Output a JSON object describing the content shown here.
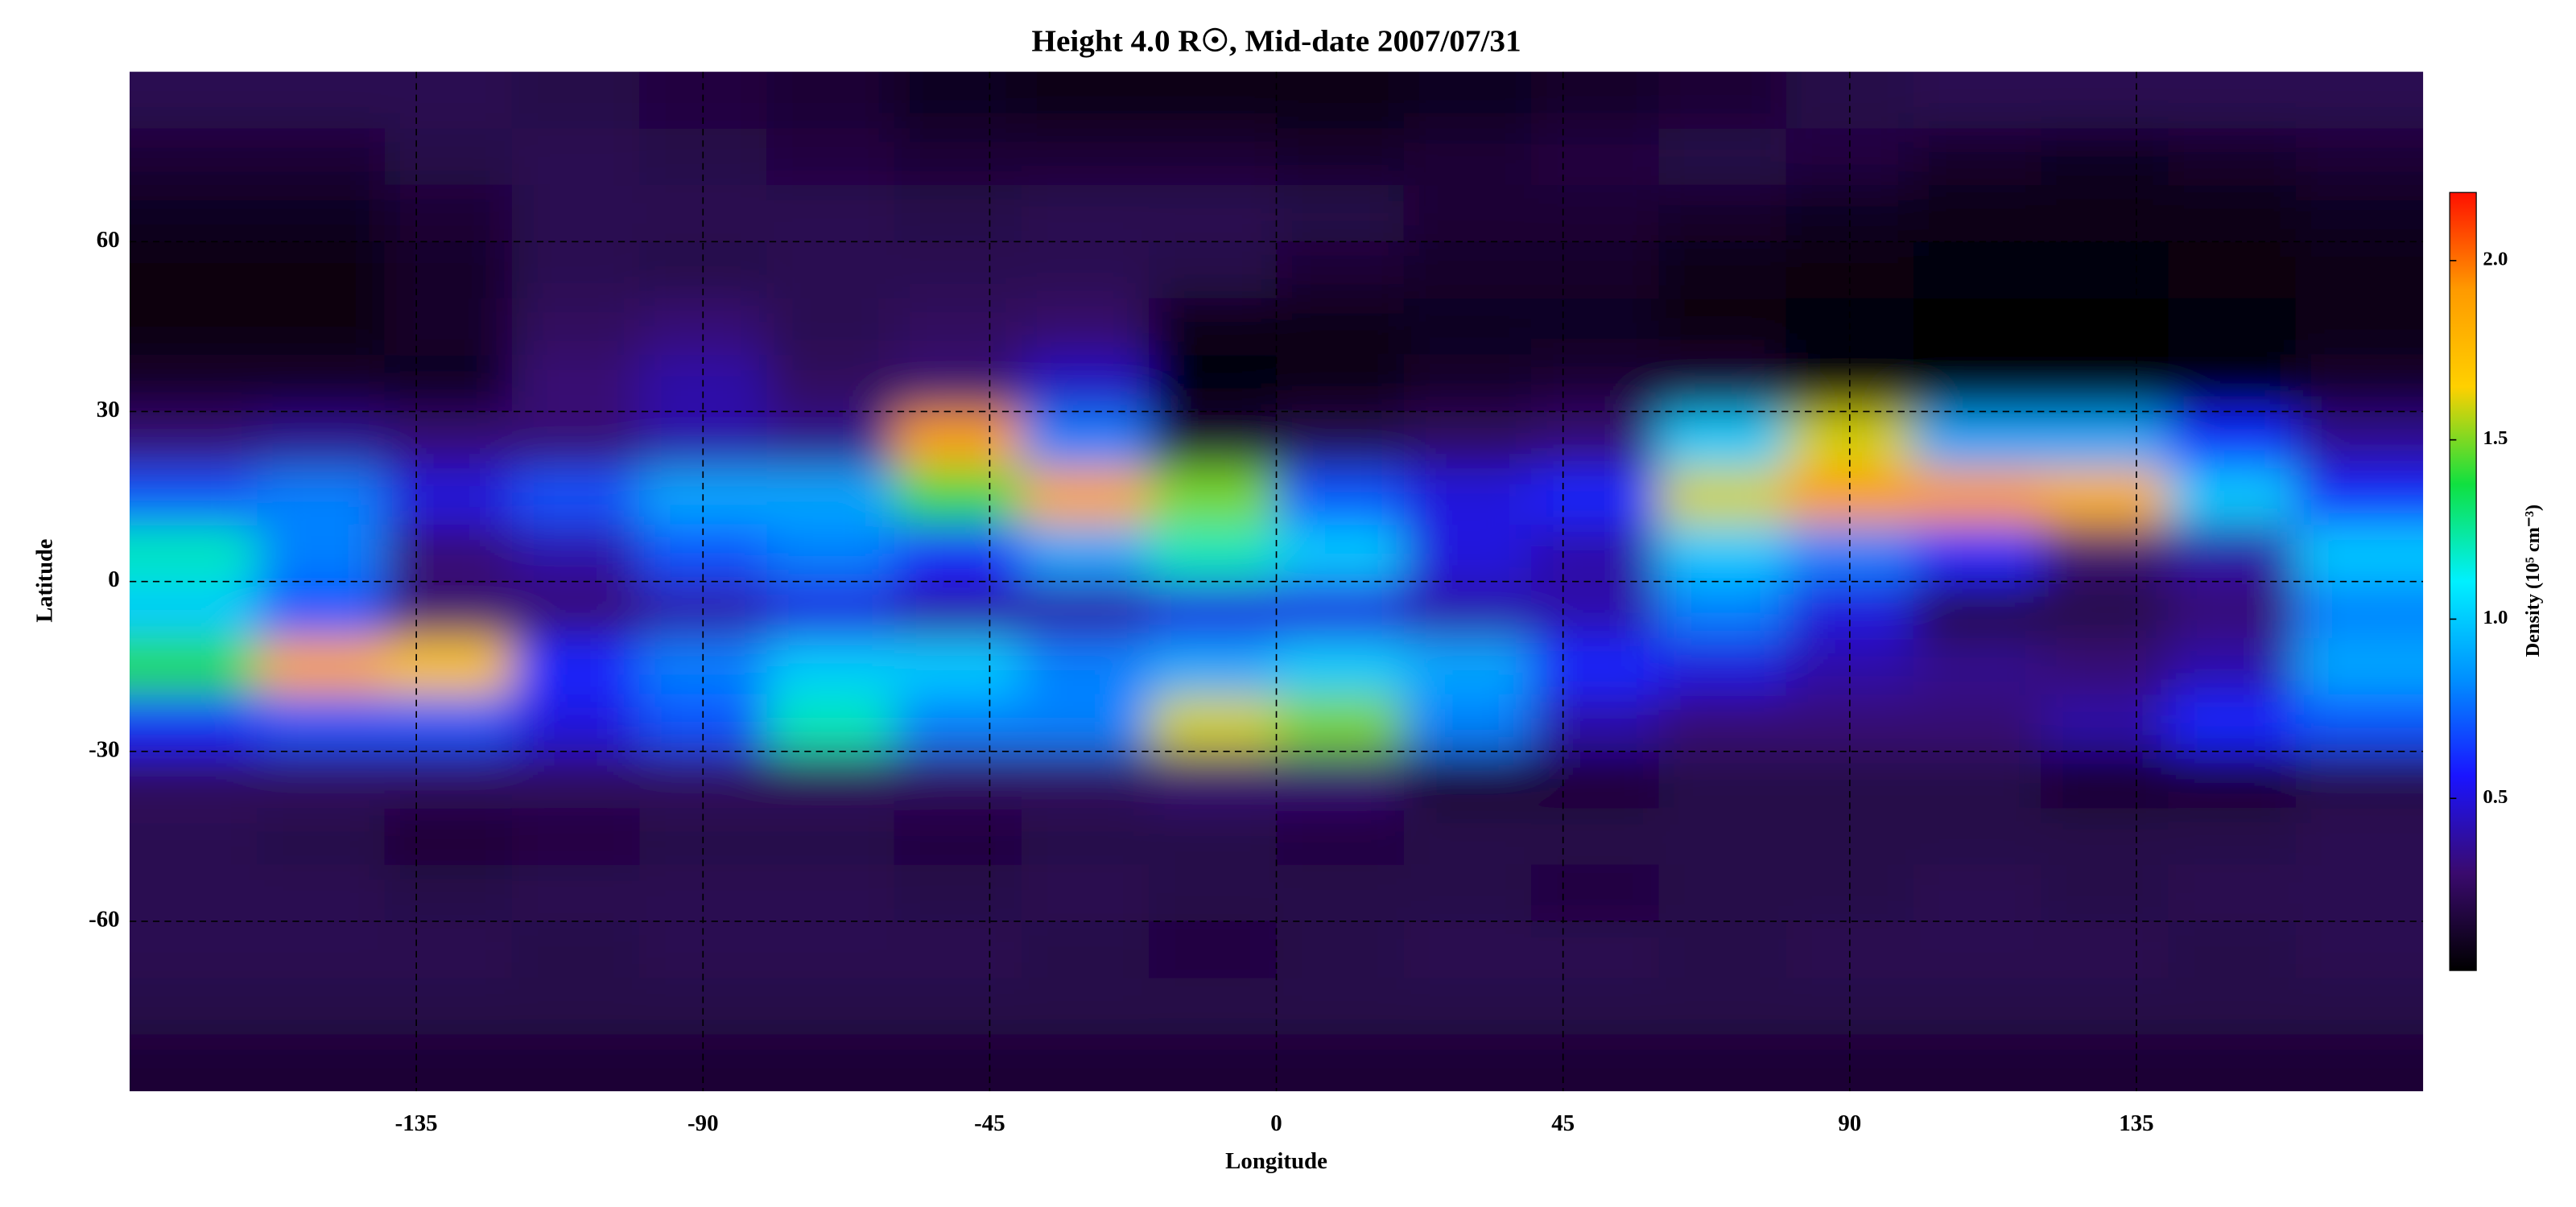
{
  "chart_data": {
    "type": "heatmap",
    "title": "Height 4.0 R☉, Mid-date 2007/07/31",
    "x_label": "Longitude",
    "y_label": "Latitude",
    "colorbar_label": "Density (10⁵ cm⁻³)",
    "xlim": [
      -180,
      180
    ],
    "ylim": [
      -90,
      90
    ],
    "xticks": [
      -135,
      -90,
      -45,
      0,
      45,
      90,
      135
    ],
    "yticks": [
      -60,
      -30,
      0,
      30,
      60
    ],
    "grid": true,
    "clim": [
      0.02,
      2.19
    ],
    "cticks": [
      0.5,
      {
        "value": 1,
        "label": "1.0"
      },
      1.5,
      {
        "value": 2,
        "label": "2.0"
      }
    ],
    "colormap": [
      "#000000",
      "#3a0a6e",
      "#1a14ff",
      "#0090ff",
      "#00f0ff",
      "#10e040",
      "#ffd000",
      "#ff9a00",
      "#ff1000"
    ],
    "x": [
      -170,
      -150,
      -130,
      -110,
      -90,
      -70,
      -50,
      -30,
      -10,
      10,
      30,
      50,
      70,
      90,
      110,
      130,
      150,
      170
    ],
    "y": [
      85,
      75,
      65,
      55,
      45,
      35,
      25,
      15,
      5,
      -5,
      -15,
      -25,
      -35,
      -45,
      -55,
      -65,
      -75,
      -85
    ],
    "z": [
      [
        0.22,
        0.22,
        0.22,
        0.2,
        0.18,
        0.15,
        0.1,
        0.08,
        0.08,
        0.08,
        0.1,
        0.12,
        0.15,
        0.2,
        0.22,
        0.22,
        0.22,
        0.22
      ],
      [
        0.15,
        0.15,
        0.2,
        0.22,
        0.2,
        0.18,
        0.15,
        0.15,
        0.15,
        0.12,
        0.15,
        0.18,
        0.2,
        0.18,
        0.12,
        0.1,
        0.12,
        0.15
      ],
      [
        0.1,
        0.1,
        0.15,
        0.22,
        0.22,
        0.22,
        0.2,
        0.22,
        0.22,
        0.2,
        0.15,
        0.15,
        0.12,
        0.1,
        0.08,
        0.08,
        0.08,
        0.1
      ],
      [
        0.06,
        0.06,
        0.12,
        0.22,
        0.2,
        0.22,
        0.22,
        0.22,
        0.2,
        0.15,
        0.12,
        0.12,
        0.08,
        0.06,
        0.05,
        0.05,
        0.06,
        0.08
      ],
      [
        0.06,
        0.06,
        0.12,
        0.25,
        0.3,
        0.22,
        0.25,
        0.28,
        0.08,
        0.08,
        0.1,
        0.1,
        0.06,
        0.04,
        0.03,
        0.03,
        0.05,
        0.08
      ],
      [
        0.12,
        0.12,
        0.1,
        0.3,
        0.4,
        0.25,
        0.3,
        0.45,
        0.05,
        0.08,
        0.12,
        0.15,
        0.15,
        0.05,
        0.03,
        0.03,
        0.05,
        0.12
      ],
      [
        0.3,
        0.35,
        0.3,
        0.3,
        0.4,
        0.35,
        1.9,
        0.8,
        0.15,
        0.2,
        0.25,
        0.3,
        1.0,
        1.6,
        0.9,
        0.9,
        0.6,
        0.35
      ],
      [
        0.7,
        0.8,
        0.5,
        0.7,
        0.9,
        0.9,
        1.4,
        1.85,
        1.5,
        0.7,
        0.5,
        0.6,
        1.6,
        1.9,
        1.9,
        1.8,
        1.0,
        0.6
      ],
      [
        1.2,
        0.8,
        0.3,
        0.4,
        0.7,
        0.8,
        0.6,
        0.9,
        1.2,
        1.0,
        0.5,
        0.4,
        1.0,
        0.8,
        0.6,
        0.3,
        0.4,
        1.0
      ],
      [
        1.0,
        0.7,
        0.3,
        0.3,
        0.4,
        0.5,
        0.4,
        0.4,
        0.5,
        0.5,
        0.4,
        0.4,
        0.8,
        0.5,
        0.2,
        0.2,
        0.3,
        0.8
      ],
      [
        1.4,
        1.85,
        1.7,
        0.6,
        0.8,
        1.0,
        1.0,
        0.8,
        0.9,
        1.0,
        0.9,
        0.6,
        0.5,
        0.4,
        0.35,
        0.3,
        0.4,
        0.9
      ],
      [
        0.6,
        0.7,
        0.7,
        0.5,
        0.7,
        1.2,
        0.8,
        0.8,
        1.6,
        1.5,
        0.8,
        0.4,
        0.3,
        0.3,
        0.3,
        0.4,
        0.6,
        0.7
      ],
      [
        0.25,
        0.25,
        0.25,
        0.25,
        0.25,
        0.25,
        0.25,
        0.25,
        0.3,
        0.3,
        0.15,
        0.15,
        0.2,
        0.2,
        0.2,
        0.12,
        0.15,
        0.2
      ],
      [
        0.22,
        0.2,
        0.15,
        0.18,
        0.2,
        0.2,
        0.18,
        0.2,
        0.2,
        0.18,
        0.2,
        0.2,
        0.2,
        0.2,
        0.2,
        0.2,
        0.2,
        0.22
      ],
      [
        0.22,
        0.22,
        0.2,
        0.22,
        0.22,
        0.22,
        0.2,
        0.22,
        0.2,
        0.2,
        0.2,
        0.18,
        0.2,
        0.2,
        0.22,
        0.2,
        0.22,
        0.22
      ],
      [
        0.22,
        0.22,
        0.22,
        0.2,
        0.22,
        0.22,
        0.22,
        0.2,
        0.18,
        0.2,
        0.22,
        0.22,
        0.2,
        0.22,
        0.22,
        0.22,
        0.2,
        0.22
      ],
      [
        0.2,
        0.2,
        0.2,
        0.2,
        0.2,
        0.2,
        0.2,
        0.2,
        0.2,
        0.2,
        0.2,
        0.2,
        0.2,
        0.2,
        0.2,
        0.2,
        0.2,
        0.2
      ],
      [
        0.15,
        0.15,
        0.15,
        0.15,
        0.15,
        0.15,
        0.15,
        0.15,
        0.15,
        0.15,
        0.15,
        0.15,
        0.15,
        0.15,
        0.15,
        0.15,
        0.15,
        0.15
      ]
    ]
  }
}
